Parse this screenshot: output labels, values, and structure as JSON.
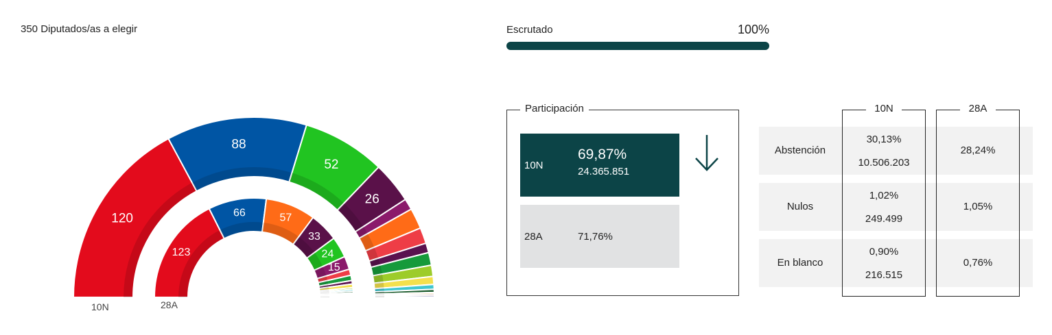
{
  "header": {
    "title": "350 Diputados/as a elegir"
  },
  "progress": {
    "label": "Escrutado",
    "value": 100,
    "value_label": "100%",
    "xlim": [
      0,
      100
    ]
  },
  "chart_data": [
    {
      "type": "semicircle",
      "label": "10N",
      "values": [
        120,
        88,
        52,
        26,
        7,
        13,
        10,
        6,
        8,
        7,
        5,
        3,
        2,
        1,
        1,
        1
      ],
      "colors": [
        "#e30b1c",
        "#0055a4",
        "#21c421",
        "#5a1149",
        "#8b1a6b",
        "#ff6b17",
        "#ee3d46",
        "#5a124f",
        "#169a3b",
        "#9dcc2a",
        "#f4e04d",
        "#3fc6d0",
        "#1d5c2e",
        "#e9a23b",
        "#7a1f1f",
        "#2c2c7a"
      ]
    },
    {
      "type": "semicircle",
      "label": "28A",
      "values": [
        123,
        66,
        57,
        33,
        24,
        15,
        7,
        6,
        4,
        4,
        2,
        2,
        2,
        1,
        1,
        1,
        1,
        1
      ],
      "colors": [
        "#e30b1c",
        "#0055a4",
        "#ff6b17",
        "#5a1149",
        "#21c421",
        "#8b1a6b",
        "#ee3d46",
        "#169a3b",
        "#5a124f",
        "#f4e04d",
        "#9dcc2a",
        "#3fc6d0",
        "#1d5c2e",
        "#e9a23b",
        "#7a1f1f",
        "#2c2c7a",
        "#c2185b",
        "#555555"
      ]
    }
  ],
  "participation": {
    "title": "Participación",
    "current": {
      "label": "10N",
      "percent": "69,87%",
      "count": "24.365.851"
    },
    "previous": {
      "label": "28A",
      "percent": "71,76%"
    }
  },
  "table": {
    "columns": [
      "10N",
      "28A"
    ],
    "rows": [
      {
        "label": "Abstención",
        "current_percent": "30,13%",
        "current_count": "10.506.203",
        "previous_percent": "28,24%"
      },
      {
        "label": "Nulos",
        "current_percent": "1,02%",
        "current_count": "249.499",
        "previous_percent": "1,05%"
      },
      {
        "label": "En blanco",
        "current_percent": "0,90%",
        "current_count": "216.515",
        "previous_percent": "0,76%"
      }
    ]
  }
}
